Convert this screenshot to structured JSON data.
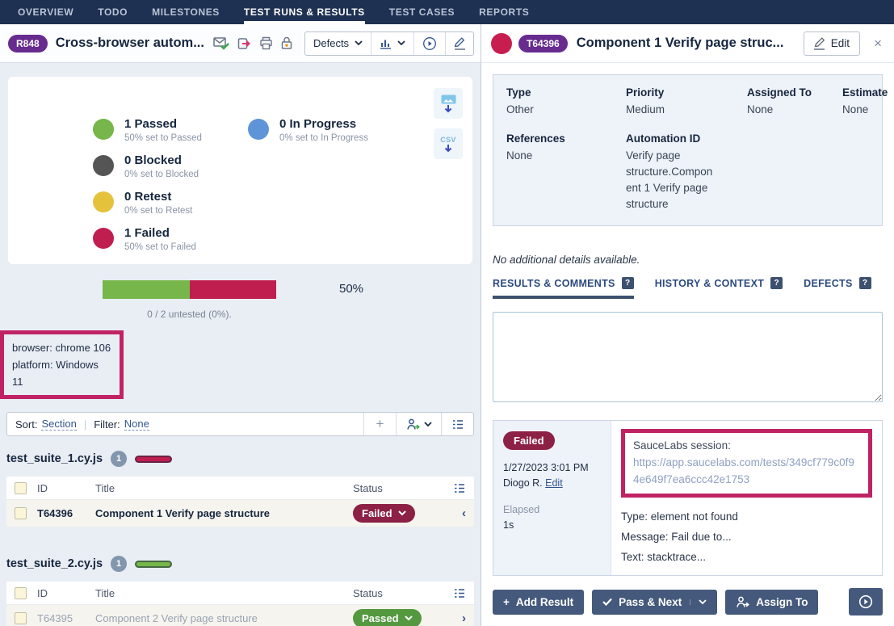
{
  "nav": {
    "items": [
      "OVERVIEW",
      "TODO",
      "MILESTONES",
      "TEST RUNS & RESULTS",
      "TEST CASES",
      "REPORTS"
    ]
  },
  "left_panel": {
    "header": {
      "badge": "R848",
      "title": "Cross-browser autom...",
      "defects_label": "Defects"
    },
    "summary": {
      "legend": [
        {
          "label": "1 Passed",
          "sub": "50% set to Passed",
          "color": "#76b64a"
        },
        {
          "label": "0 Blocked",
          "sub": "0% set to Blocked",
          "color": "#555555"
        },
        {
          "label": "0 Retest",
          "sub": "0% set to Retest",
          "color": "#e5c23c"
        },
        {
          "label": "1 Failed",
          "sub": "50% set to Failed",
          "color": "#c11e50"
        },
        {
          "label": "0 In Progress",
          "sub": "0% set to In Progress",
          "color": "#5f94d9"
        }
      ],
      "csv_label": "CSV"
    },
    "progress": {
      "passed_pct": 50,
      "failed_pct": 50,
      "percent_label": "50%",
      "untested_label": "0 / 2 untested (0%)."
    },
    "config_box": {
      "line1": "browser: chrome 106",
      "line2": "platform: Windows 11"
    },
    "toolbar": {
      "sort_label": "Sort:",
      "sort_value": "Section",
      "filter_label": "Filter:",
      "filter_value": "None"
    },
    "columns": {
      "id": "ID",
      "title": "Title",
      "status": "Status"
    },
    "groups": [
      {
        "name": "test_suite_1.cy.js",
        "count": "1",
        "bar_color": "#c11e50",
        "row": {
          "id": "T64396",
          "title": "Component 1 Verify page structure",
          "status": "Failed",
          "status_color": "#8c2045",
          "chevron": "‹"
        }
      },
      {
        "name": "test_suite_2.cy.js",
        "count": "1",
        "bar_color": "#76b64a",
        "row": {
          "id": "T64395",
          "title": "Component 2 Verify page structure",
          "status": "Passed",
          "status_color": "#54983f",
          "chevron": "›"
        }
      }
    ]
  },
  "right_panel": {
    "header": {
      "badge": "T64396",
      "title": "Component 1 Verify page struc...",
      "edit_label": "Edit",
      "close_label": "×"
    },
    "details": {
      "fields": [
        {
          "label": "Type",
          "value": "Other"
        },
        {
          "label": "Priority",
          "value": "Medium"
        },
        {
          "label": "Assigned To",
          "value": "None"
        },
        {
          "label": "Estimate",
          "value": "None"
        },
        {
          "label": "References",
          "value": "None"
        },
        {
          "label": "Automation ID",
          "value": "Verify page structure.Component 1 Verify page structure"
        }
      ],
      "no_details": "No additional details available."
    },
    "tabs": [
      {
        "label": "RESULTS & COMMENTS"
      },
      {
        "label": "HISTORY & CONTEXT"
      },
      {
        "label": "DEFECTS"
      }
    ],
    "result": {
      "status": "Failed",
      "timestamp": "1/27/2023 3:01 PM",
      "author": "Diogo R.",
      "edit_link": "Edit",
      "elapsed_label": "Elapsed",
      "elapsed_value": "1s",
      "session_label": "SauceLabs session:",
      "session_url": "https://app.saucelabs.com/tests/349cf779c0f94e649f7ea6ccc42e1753",
      "detail_lines": [
        "Type: element not found",
        "Message: Fail due to...",
        "Text: stacktrace..."
      ]
    },
    "actions": {
      "add_result": "Add Result",
      "pass_next": "Pass & Next",
      "assign_to": "Assign To"
    }
  },
  "colors": {
    "nav_bg": "#1e3152",
    "badge_purple": "#672c8e",
    "passed_green": "#76b64a",
    "failed_red": "#c11e50",
    "passed_pill": "#54983f",
    "failed_pill": "#8c2045",
    "in_progress_blue": "#5f94d9",
    "retest_yellow": "#e5c23c",
    "blocked_gray": "#555555",
    "annotation_pink": "#c02364",
    "action_button": "#44597c"
  }
}
